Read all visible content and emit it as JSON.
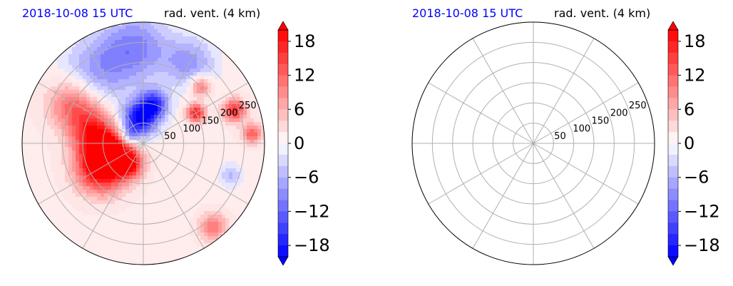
{
  "figure": {
    "panels": [
      {
        "date_label": "2018-10-08 15 UTC",
        "title": "rad. vent. (4 km)",
        "has_data": true
      },
      {
        "date_label": "2018-10-08 15 UTC",
        "title": "rad. vent. (4 km)",
        "has_data": false
      }
    ]
  },
  "chart_data": [
    {
      "type": "heatmap",
      "projection": "polar",
      "title": "rad. vent. (4 km)",
      "subtitle": "2018-10-08 15 UTC",
      "radial_ticks": [
        50,
        100,
        150,
        200,
        250
      ],
      "rlim": [
        0,
        300
      ],
      "angular_grid_deg": 30,
      "grid": true,
      "colorbar": {
        "ticks": [
          -18,
          -12,
          -6,
          0,
          6,
          12,
          18
        ],
        "tick_labels": [
          "−18",
          "−12",
          "−6",
          "0",
          "6",
          "12",
          "18"
        ],
        "range": [
          -20,
          20
        ],
        "extend": "both",
        "colormap": "bwr",
        "neg_color": "#0000ff",
        "pos_color": "#ff0000"
      },
      "features": [
        {
          "angle_deg": 210,
          "radius": 120,
          "value": 20,
          "spread": 45
        },
        {
          "angle_deg": 195,
          "radius": 90,
          "value": 18,
          "spread": 35
        },
        {
          "angle_deg": 165,
          "radius": 130,
          "value": 14,
          "spread": 40
        },
        {
          "angle_deg": 150,
          "radius": 200,
          "value": 12,
          "spread": 45
        },
        {
          "angle_deg": 235,
          "radius": 60,
          "value": 16,
          "spread": 25
        },
        {
          "angle_deg": 100,
          "radius": 60,
          "value": -20,
          "spread": 30
        },
        {
          "angle_deg": 75,
          "radius": 100,
          "value": -16,
          "spread": 25
        },
        {
          "angle_deg": 95,
          "radius": 240,
          "value": -10,
          "spread": 60
        },
        {
          "angle_deg": 125,
          "radius": 210,
          "value": -8,
          "spread": 60
        },
        {
          "angle_deg": 60,
          "radius": 230,
          "value": -8,
          "spread": 45
        },
        {
          "angle_deg": 30,
          "radius": 150,
          "value": 18,
          "spread": 16
        },
        {
          "angle_deg": 20,
          "radius": 240,
          "value": 16,
          "spread": 20
        },
        {
          "angle_deg": 45,
          "radius": 200,
          "value": 12,
          "spread": 18
        },
        {
          "angle_deg": 5,
          "radius": 270,
          "value": 12,
          "spread": 18
        },
        {
          "angle_deg": 310,
          "radius": 270,
          "value": 10,
          "spread": 25
        },
        {
          "angle_deg": 340,
          "radius": 230,
          "value": -6,
          "spread": 20
        },
        {
          "angle_deg": 150,
          "radius": 40,
          "value": -8,
          "spread": 14
        }
      ],
      "background_value": 1.5
    },
    {
      "type": "heatmap",
      "projection": "polar",
      "title": "rad. vent. (4 km)",
      "subtitle": "2018-10-08 15 UTC",
      "radial_ticks": [
        50,
        100,
        150,
        200,
        250
      ],
      "rlim": [
        0,
        300
      ],
      "angular_grid_deg": 30,
      "grid": true,
      "empty": true,
      "colorbar": {
        "ticks": [
          -18,
          -12,
          -6,
          0,
          6,
          12,
          18
        ],
        "tick_labels": [
          "−18",
          "−12",
          "−6",
          "0",
          "6",
          "12",
          "18"
        ],
        "range": [
          -20,
          20
        ],
        "extend": "both",
        "colormap": "bwr",
        "neg_color": "#0000ff",
        "pos_color": "#ff0000"
      }
    }
  ]
}
